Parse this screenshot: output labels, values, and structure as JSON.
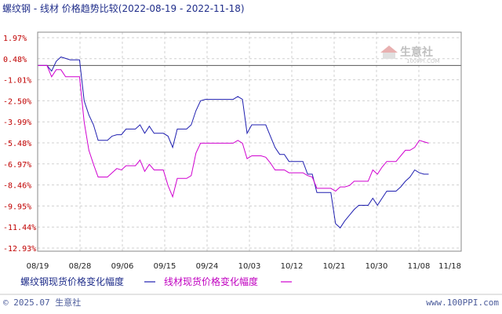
{
  "chart_data": {
    "type": "line",
    "title": "螺纹钢 - 线材 价格趋势比较(2022-08-19 - 2022-11-18)",
    "y_ticks": [
      "1.97%",
      "0.48%",
      "-1.01%",
      "-2.50%",
      "-3.99%",
      "-5.48%",
      "-6.97%",
      "-8.46%",
      "-9.95%",
      "-11.44%",
      "-12.93%"
    ],
    "ylim": [
      -12.93,
      1.97
    ],
    "x_ticks": [
      "08/19",
      "08/28",
      "09/06",
      "09/15",
      "09/24",
      "10/03",
      "10/12",
      "10/21",
      "10/30",
      "11/08",
      "11/18"
    ],
    "x_range_days": [
      0,
      91
    ],
    "series": [
      {
        "name": "螺纹钢现货价格变化幅度",
        "color": "#1f1fb0",
        "points": [
          [
            0,
            0
          ],
          [
            1,
            0
          ],
          [
            2,
            0
          ],
          [
            3,
            -0.4
          ],
          [
            4,
            0.3
          ],
          [
            5,
            0.6
          ],
          [
            6,
            0.5
          ],
          [
            7,
            0.4
          ],
          [
            8,
            0.4
          ],
          [
            9,
            0.4
          ],
          [
            10,
            -2.5
          ],
          [
            11,
            -3.5
          ],
          [
            12,
            -4.2
          ],
          [
            13,
            -5.3
          ],
          [
            14,
            -5.3
          ],
          [
            15,
            -5.3
          ],
          [
            16,
            -5.0
          ],
          [
            17,
            -4.9
          ],
          [
            18,
            -4.9
          ],
          [
            19,
            -4.5
          ],
          [
            20,
            -4.5
          ],
          [
            21,
            -4.5
          ],
          [
            22,
            -4.2
          ],
          [
            23,
            -4.8
          ],
          [
            24,
            -4.3
          ],
          [
            25,
            -4.8
          ],
          [
            26,
            -4.8
          ],
          [
            27,
            -4.8
          ],
          [
            28,
            -5.0
          ],
          [
            29,
            -5.8
          ],
          [
            30,
            -4.5
          ],
          [
            31,
            -4.5
          ],
          [
            32,
            -4.5
          ],
          [
            33,
            -4.2
          ],
          [
            34,
            -3.2
          ],
          [
            35,
            -2.5
          ],
          [
            36,
            -2.4
          ],
          [
            37,
            -2.4
          ],
          [
            38,
            -2.4
          ],
          [
            39,
            -2.4
          ],
          [
            40,
            -2.4
          ],
          [
            41,
            -2.4
          ],
          [
            42,
            -2.4
          ],
          [
            43,
            -2.2
          ],
          [
            44,
            -2.4
          ],
          [
            45,
            -4.8
          ],
          [
            46,
            -4.2
          ],
          [
            47,
            -4.2
          ],
          [
            48,
            -4.2
          ],
          [
            49,
            -4.2
          ],
          [
            50,
            -5.0
          ],
          [
            51,
            -5.8
          ],
          [
            52,
            -6.3
          ],
          [
            53,
            -6.3
          ],
          [
            54,
            -6.8
          ],
          [
            55,
            -6.8
          ],
          [
            56,
            -6.8
          ],
          [
            57,
            -6.8
          ],
          [
            58,
            -7.7
          ],
          [
            59,
            -7.7
          ],
          [
            60,
            -9.0
          ],
          [
            61,
            -9.0
          ],
          [
            62,
            -9.0
          ],
          [
            63,
            -9.0
          ],
          [
            64,
            -11.2
          ],
          [
            65,
            -11.5
          ],
          [
            66,
            -11.0
          ],
          [
            67,
            -10.6
          ],
          [
            68,
            -10.2
          ],
          [
            69,
            -9.9
          ],
          [
            70,
            -9.9
          ],
          [
            71,
            -9.9
          ],
          [
            72,
            -9.4
          ],
          [
            73,
            -9.9
          ],
          [
            74,
            -9.4
          ],
          [
            75,
            -8.9
          ],
          [
            76,
            -8.9
          ],
          [
            77,
            -8.9
          ],
          [
            78,
            -8.6
          ],
          [
            79,
            -8.2
          ],
          [
            80,
            -7.9
          ],
          [
            81,
            -7.4
          ],
          [
            82,
            -7.6
          ],
          [
            83,
            -7.7
          ],
          [
            84,
            -7.7
          ]
        ]
      },
      {
        "name": "线材现货价格变化幅度",
        "color": "#d000d0",
        "points": [
          [
            0,
            0
          ],
          [
            1,
            0
          ],
          [
            2,
            0
          ],
          [
            3,
            -0.8
          ],
          [
            4,
            -0.3
          ],
          [
            5,
            -0.3
          ],
          [
            6,
            -0.8
          ],
          [
            7,
            -0.8
          ],
          [
            8,
            -0.8
          ],
          [
            9,
            -0.8
          ],
          [
            10,
            -4.0
          ],
          [
            11,
            -6.0
          ],
          [
            12,
            -7.0
          ],
          [
            13,
            -7.9
          ],
          [
            14,
            -7.9
          ],
          [
            15,
            -7.9
          ],
          [
            16,
            -7.6
          ],
          [
            17,
            -7.3
          ],
          [
            18,
            -7.4
          ],
          [
            19,
            -7.1
          ],
          [
            20,
            -7.1
          ],
          [
            21,
            -7.1
          ],
          [
            22,
            -6.7
          ],
          [
            23,
            -7.5
          ],
          [
            24,
            -7.0
          ],
          [
            25,
            -7.4
          ],
          [
            26,
            -7.4
          ],
          [
            27,
            -7.4
          ],
          [
            28,
            -8.5
          ],
          [
            29,
            -9.3
          ],
          [
            30,
            -8.0
          ],
          [
            31,
            -8.0
          ],
          [
            32,
            -8.0
          ],
          [
            33,
            -7.8
          ],
          [
            34,
            -6.2
          ],
          [
            35,
            -5.5
          ],
          [
            36,
            -5.5
          ],
          [
            37,
            -5.5
          ],
          [
            38,
            -5.5
          ],
          [
            39,
            -5.5
          ],
          [
            40,
            -5.5
          ],
          [
            41,
            -5.5
          ],
          [
            42,
            -5.5
          ],
          [
            43,
            -5.3
          ],
          [
            44,
            -5.5
          ],
          [
            45,
            -6.6
          ],
          [
            46,
            -6.4
          ],
          [
            47,
            -6.4
          ],
          [
            48,
            -6.4
          ],
          [
            49,
            -6.5
          ],
          [
            50,
            -6.9
          ],
          [
            51,
            -7.4
          ],
          [
            52,
            -7.4
          ],
          [
            53,
            -7.4
          ],
          [
            54,
            -7.6
          ],
          [
            55,
            -7.6
          ],
          [
            56,
            -7.6
          ],
          [
            57,
            -7.6
          ],
          [
            58,
            -7.8
          ],
          [
            59,
            -7.9
          ],
          [
            60,
            -8.7
          ],
          [
            61,
            -8.7
          ],
          [
            62,
            -8.7
          ],
          [
            63,
            -8.7
          ],
          [
            64,
            -8.9
          ],
          [
            65,
            -8.6
          ],
          [
            66,
            -8.6
          ],
          [
            67,
            -8.5
          ],
          [
            68,
            -8.2
          ],
          [
            69,
            -8.2
          ],
          [
            70,
            -8.2
          ],
          [
            71,
            -8.2
          ],
          [
            72,
            -7.4
          ],
          [
            73,
            -7.7
          ],
          [
            74,
            -7.2
          ],
          [
            75,
            -6.8
          ],
          [
            76,
            -6.8
          ],
          [
            77,
            -6.8
          ],
          [
            78,
            -6.4
          ],
          [
            79,
            -6.0
          ],
          [
            80,
            -6.0
          ],
          [
            81,
            -5.8
          ],
          [
            82,
            -5.3
          ],
          [
            83,
            -5.4
          ],
          [
            84,
            -5.5
          ]
        ]
      }
    ],
    "grid": true,
    "legend_position": "bottom-left"
  },
  "footer": {
    "copyright": "© 2025.07 生意社",
    "website": "www.100PPI.com"
  },
  "watermark": {
    "brand": "生意社",
    "url": "100PPI.COM"
  }
}
